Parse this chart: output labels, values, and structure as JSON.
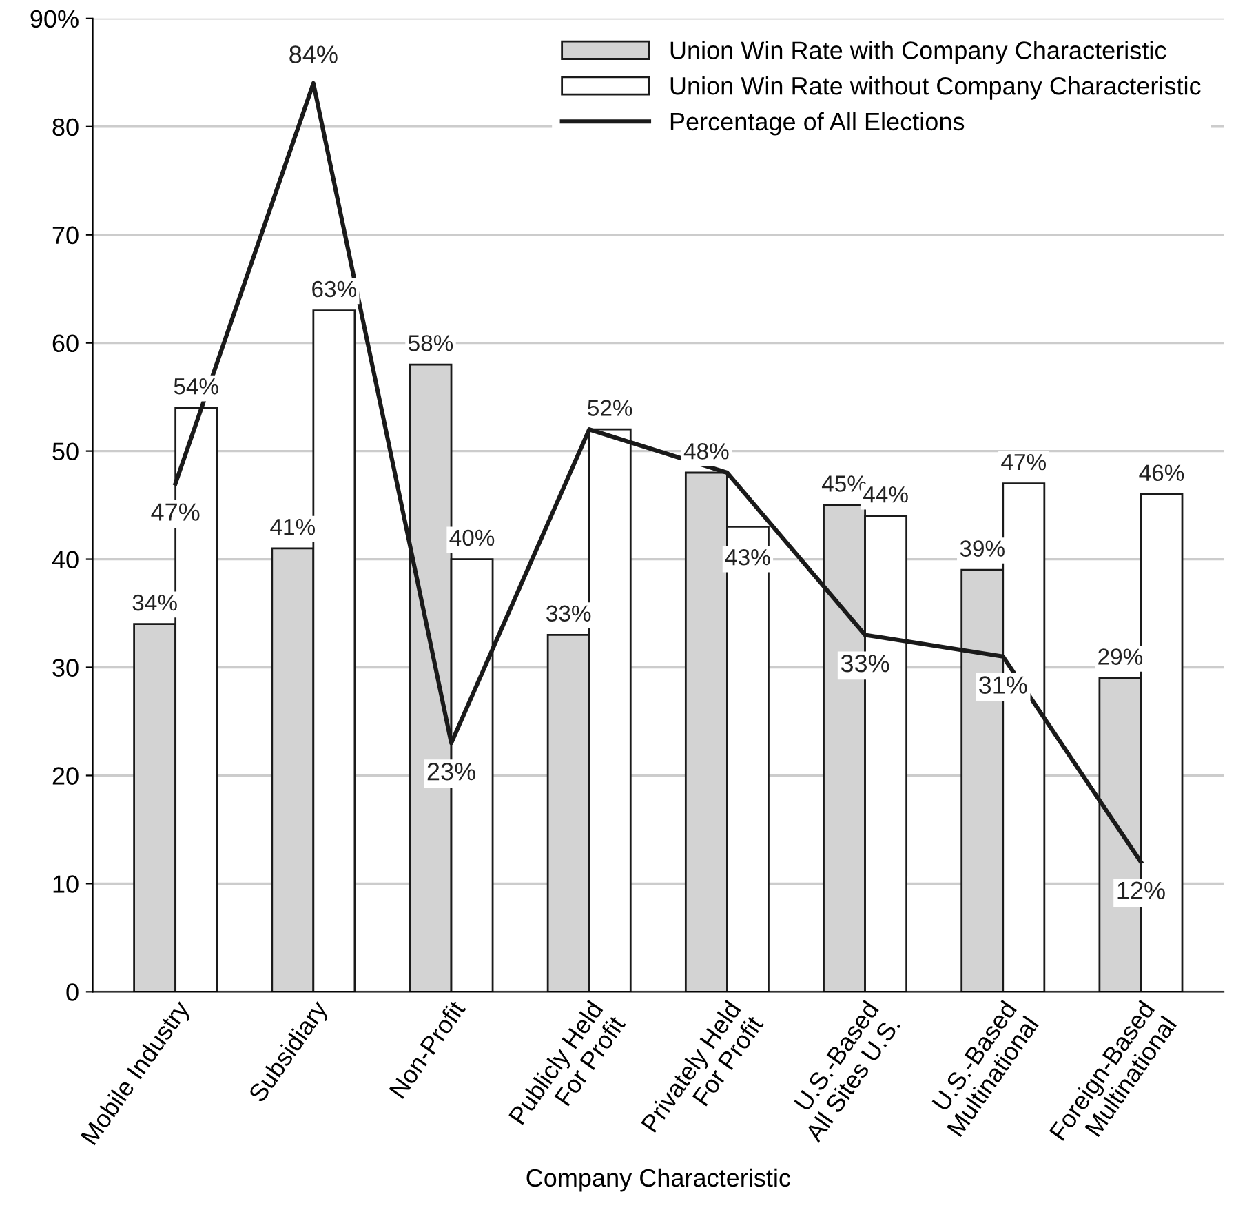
{
  "chart_data": {
    "type": "bar",
    "xlabel": "Company Characteristic",
    "categories": [
      "Mobile Industry",
      "Subsidiary",
      "Non-Profit",
      "Publicly Held\nFor Profit",
      "Privately Held\nFor Profit",
      "U.S.-Based\nAll Sites U.S.",
      "U.S.-Based\nMultinational",
      "Foreign-Based\nMultinational"
    ],
    "series": [
      {
        "name": "Union Win Rate with Company Characteristic",
        "color": "#d3d3d3",
        "values": [
          34,
          41,
          58,
          33,
          48,
          45,
          39,
          29
        ],
        "value_labels": [
          "34%",
          "41%",
          "58%",
          "33%",
          "48%",
          "45%",
          "39%",
          "29%"
        ]
      },
      {
        "name": "Union Win Rate without Company Characteristic",
        "color": "#ffffff",
        "values": [
          54,
          63,
          40,
          52,
          43,
          44,
          47,
          46
        ],
        "value_labels": [
          "54%",
          "63%",
          "40%",
          "52%",
          "43%",
          "44%",
          "47%",
          "46%"
        ]
      },
      {
        "name": "Percentage of All Elections",
        "type": "line",
        "color": "#1a1a1a",
        "values": [
          47,
          84,
          23,
          52,
          48,
          33,
          31,
          12
        ],
        "value_labels": [
          "47%",
          "84%",
          "23%",
          null,
          null,
          "33%",
          "31%",
          "12%"
        ]
      }
    ],
    "ylim": [
      0,
      90
    ],
    "yticks": [
      0,
      10,
      20,
      30,
      40,
      50,
      60,
      70,
      80,
      {
        "value": 90,
        "label": "90%"
      }
    ],
    "grid": "y",
    "legend": "top right"
  }
}
